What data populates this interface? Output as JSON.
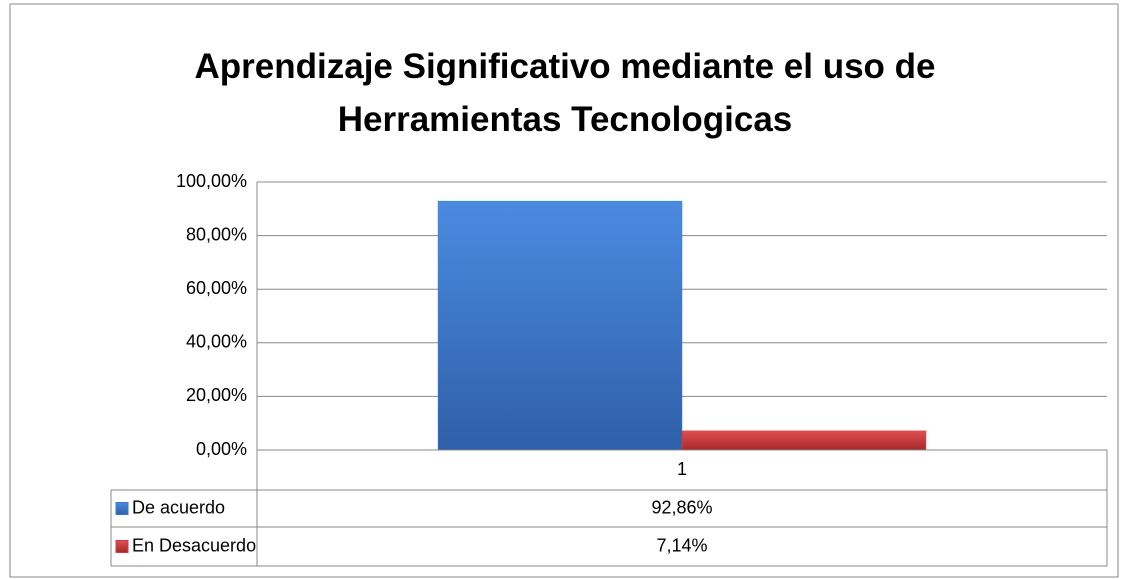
{
  "chart_data": {
    "type": "bar",
    "title": "Aprendizaje Significativo mediante el uso de Herramientas Tecnologicas",
    "categories": [
      "1"
    ],
    "series": [
      {
        "name": "De acuerdo",
        "color": "#3a78d4",
        "values": [
          92.86
        ],
        "value_labels": [
          "92,86%"
        ]
      },
      {
        "name": "En Desacuerdo",
        "color": "#d23c3c",
        "values": [
          7.14
        ],
        "value_labels": [
          "7,14%"
        ]
      }
    ],
    "ylim": [
      0,
      100
    ],
    "yticks": [
      {
        "value": 0,
        "label": "0,00%"
      },
      {
        "value": 20,
        "label": "20,00%"
      },
      {
        "value": 40,
        "label": "40,00%"
      },
      {
        "value": 60,
        "label": "60,00%"
      },
      {
        "value": 80,
        "label": "80,00%"
      },
      {
        "value": 100,
        "label": "100,00%"
      }
    ],
    "grid": true
  }
}
